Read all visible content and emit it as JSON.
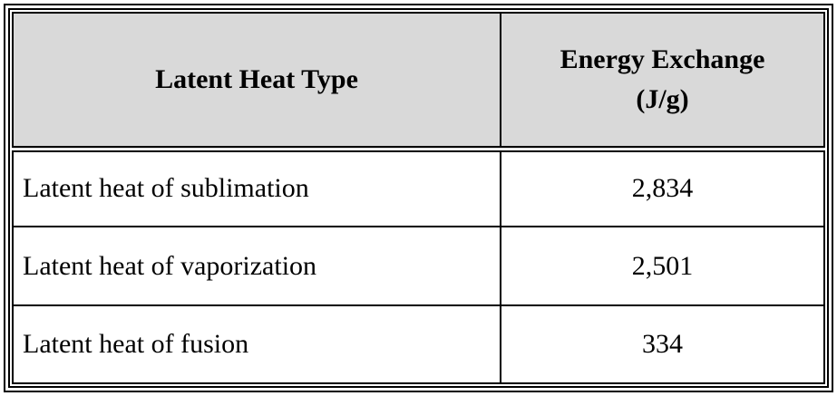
{
  "table": {
    "header": [
      "Latent Heat Type",
      "Energy Exchange\n(J/g)"
    ],
    "rows": [
      [
        "Latent heat of sublimation",
        "2,834"
      ],
      [
        "Latent heat of vaporization",
        "2,501"
      ],
      [
        "Latent heat of fusion",
        "334"
      ]
    ]
  }
}
